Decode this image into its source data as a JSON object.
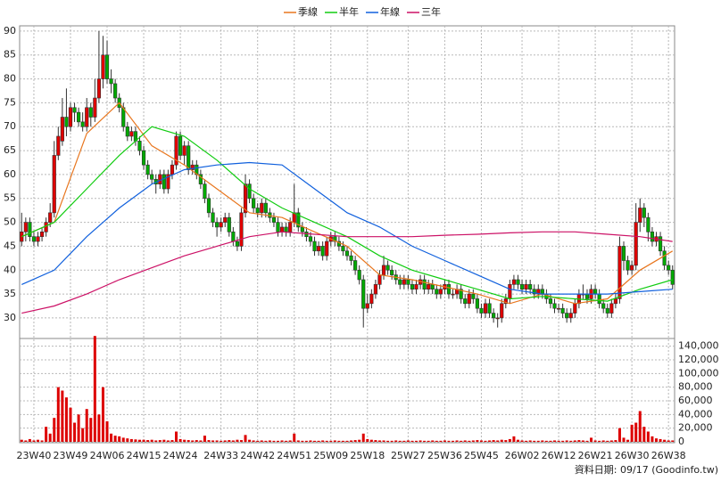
{
  "chart_data": {
    "type": "candlestick",
    "categories": [
      null,
      null,
      null,
      "23W40",
      null,
      null,
      null,
      null,
      null,
      null,
      null,
      null,
      "23W49",
      null,
      null,
      null,
      null,
      null,
      null,
      null,
      null,
      "24W06",
      null,
      null,
      null,
      null,
      null,
      null,
      null,
      null,
      "24W15",
      null,
      null,
      null,
      null,
      null,
      null,
      null,
      null,
      "24W24",
      null,
      null,
      null,
      null,
      null,
      null,
      null,
      null,
      null,
      "24W33",
      null,
      null,
      null,
      null,
      null,
      null,
      null,
      null,
      "24W42",
      null,
      null,
      null,
      null,
      null,
      null,
      null,
      null,
      "24W51",
      null,
      null,
      null,
      null,
      null,
      null,
      null,
      null,
      "25W09",
      null,
      null,
      null,
      null,
      null,
      null,
      null,
      null,
      "25W18",
      null,
      null,
      null,
      null,
      null,
      null,
      null,
      null,
      null,
      "25W27",
      null,
      null,
      null,
      null,
      null,
      null,
      null,
      null,
      "25W36",
      null,
      null,
      null,
      null,
      null,
      null,
      null,
      null,
      "25W45",
      null,
      null,
      null,
      null,
      null,
      null,
      null,
      null,
      null,
      "26W02",
      null,
      null,
      null,
      null,
      null,
      null,
      null,
      null,
      "26W12",
      null,
      null,
      null,
      null,
      null,
      null,
      null,
      null,
      "26W21",
      null,
      null,
      null,
      null,
      null,
      null,
      null,
      null,
      "26W30",
      null,
      null,
      null,
      null,
      null,
      null,
      null,
      null,
      "26W38",
      null
    ],
    "ohlc": [
      [
        46,
        52,
        45,
        48
      ],
      [
        48,
        51,
        46,
        50
      ],
      [
        50,
        51,
        46,
        47
      ],
      [
        47,
        48,
        45,
        46
      ],
      [
        46,
        48,
        45,
        47
      ],
      [
        47,
        49,
        46,
        48
      ],
      [
        48,
        51,
        47,
        50
      ],
      [
        50,
        54,
        49,
        52
      ],
      [
        52,
        67,
        51,
        64
      ],
      [
        64,
        70,
        63,
        68
      ],
      [
        67,
        76,
        66,
        72
      ],
      [
        72,
        78,
        68,
        70
      ],
      [
        70,
        75,
        69,
        74
      ],
      [
        74,
        75,
        71,
        73
      ],
      [
        73,
        74,
        70,
        71
      ],
      [
        71,
        73,
        69,
        70
      ],
      [
        70,
        76,
        69,
        74
      ],
      [
        74,
        75,
        70,
        72
      ],
      [
        72,
        80,
        71,
        76
      ],
      [
        76,
        90,
        75,
        80
      ],
      [
        80,
        89,
        78,
        85
      ],
      [
        85,
        88,
        79,
        80
      ],
      [
        80,
        82,
        77,
        79
      ],
      [
        79,
        80,
        75,
        76
      ],
      [
        76,
        77,
        73,
        74
      ],
      [
        74,
        75,
        69,
        70
      ],
      [
        70,
        71,
        67,
        68
      ],
      [
        68,
        70,
        67,
        69
      ],
      [
        69,
        70,
        66,
        67
      ],
      [
        67,
        68,
        64,
        65
      ],
      [
        65,
        66,
        61,
        62
      ],
      [
        62,
        63,
        59,
        60
      ],
      [
        60,
        61,
        58,
        59
      ],
      [
        59,
        60,
        56,
        58
      ],
      [
        58,
        61,
        57,
        60
      ],
      [
        60,
        61,
        56,
        57
      ],
      [
        57,
        61,
        56,
        60
      ],
      [
        60,
        63,
        59,
        62
      ],
      [
        62,
        69,
        61,
        68
      ],
      [
        68,
        69,
        63,
        64
      ],
      [
        64,
        67,
        62,
        66
      ],
      [
        66,
        67,
        60,
        61
      ],
      [
        61,
        63,
        60,
        62
      ],
      [
        62,
        63,
        59,
        60
      ],
      [
        60,
        61,
        57,
        58
      ],
      [
        58,
        59,
        54,
        55
      ],
      [
        55,
        56,
        51,
        52
      ],
      [
        52,
        53,
        49,
        50
      ],
      [
        50,
        51,
        47,
        49
      ],
      [
        49,
        51,
        48,
        50
      ],
      [
        50,
        52,
        49,
        51
      ],
      [
        51,
        52,
        47,
        48
      ],
      [
        48,
        49,
        45,
        46
      ],
      [
        46,
        47,
        44,
        45
      ],
      [
        45,
        53,
        44,
        52
      ],
      [
        52,
        60,
        51,
        58
      ],
      [
        58,
        59,
        54,
        55
      ],
      [
        55,
        56,
        52,
        53
      ],
      [
        53,
        54,
        51,
        52
      ],
      [
        52,
        55,
        51,
        54
      ],
      [
        54,
        55,
        51,
        52
      ],
      [
        52,
        53,
        50,
        51
      ],
      [
        51,
        52,
        49,
        50
      ],
      [
        50,
        51,
        47,
        48
      ],
      [
        48,
        50,
        47,
        49
      ],
      [
        49,
        50,
        47,
        48
      ],
      [
        48,
        51,
        47,
        50
      ],
      [
        50,
        58,
        49,
        52
      ],
      [
        52,
        53,
        48,
        49
      ],
      [
        49,
        50,
        47,
        48
      ],
      [
        48,
        49,
        46,
        47
      ],
      [
        47,
        48,
        45,
        46
      ],
      [
        46,
        47,
        43,
        44
      ],
      [
        44,
        46,
        43,
        45
      ],
      [
        45,
        46,
        42,
        43
      ],
      [
        43,
        47,
        42,
        46
      ],
      [
        46,
        48,
        45,
        47
      ],
      [
        47,
        48,
        45,
        46
      ],
      [
        46,
        47,
        44,
        45
      ],
      [
        45,
        46,
        43,
        44
      ],
      [
        44,
        45,
        42,
        43
      ],
      [
        43,
        44,
        41,
        42
      ],
      [
        42,
        43,
        39,
        40
      ],
      [
        40,
        41,
        37,
        38
      ],
      [
        38,
        39,
        28,
        32
      ],
      [
        32,
        35,
        31,
        33
      ],
      [
        33,
        36,
        32,
        35
      ],
      [
        35,
        38,
        34,
        37
      ],
      [
        37,
        40,
        36,
        39
      ],
      [
        39,
        43,
        38,
        41
      ],
      [
        41,
        42,
        39,
        40
      ],
      [
        40,
        41,
        38,
        39
      ],
      [
        39,
        40,
        37,
        38
      ],
      [
        38,
        39,
        36,
        37
      ],
      [
        37,
        39,
        36,
        38
      ],
      [
        38,
        39,
        36,
        37
      ],
      [
        37,
        38,
        35,
        36
      ],
      [
        36,
        38,
        35,
        37
      ],
      [
        37,
        39,
        36,
        38
      ],
      [
        38,
        39,
        35,
        36
      ],
      [
        36,
        38,
        35,
        37
      ],
      [
        37,
        38,
        35,
        36
      ],
      [
        36,
        37,
        34,
        35
      ],
      [
        35,
        37,
        34,
        36
      ],
      [
        36,
        38,
        35,
        37
      ],
      [
        37,
        38,
        34,
        35
      ],
      [
        35,
        36,
        34,
        35
      ],
      [
        35,
        37,
        34,
        36
      ],
      [
        36,
        37,
        33,
        34
      ],
      [
        34,
        35,
        32,
        33
      ],
      [
        33,
        36,
        32,
        35
      ],
      [
        35,
        36,
        33,
        34
      ],
      [
        34,
        35,
        31,
        32
      ],
      [
        32,
        33,
        30,
        31
      ],
      [
        31,
        34,
        30,
        33
      ],
      [
        33,
        34,
        30,
        31
      ],
      [
        31,
        32,
        29,
        30
      ],
      [
        30,
        31,
        28,
        30
      ],
      [
        30,
        34,
        29,
        33
      ],
      [
        33,
        35,
        32,
        34
      ],
      [
        34,
        38,
        33,
        37
      ],
      [
        37,
        39,
        36,
        38
      ],
      [
        38,
        39,
        36,
        37
      ],
      [
        37,
        38,
        35,
        36
      ],
      [
        36,
        38,
        35,
        37
      ],
      [
        37,
        38,
        35,
        36
      ],
      [
        36,
        37,
        34,
        35
      ],
      [
        35,
        37,
        34,
        36
      ],
      [
        36,
        37,
        34,
        35
      ],
      [
        35,
        36,
        33,
        34
      ],
      [
        34,
        35,
        32,
        33
      ],
      [
        33,
        34,
        31,
        32
      ],
      [
        32,
        33,
        31,
        32
      ],
      [
        32,
        33,
        30,
        31
      ],
      [
        31,
        32,
        29,
        30
      ],
      [
        30,
        32,
        29,
        31
      ],
      [
        31,
        34,
        30,
        33
      ],
      [
        33,
        36,
        32,
        35
      ],
      [
        35,
        37,
        34,
        35
      ],
      [
        35,
        36,
        33,
        34
      ],
      [
        34,
        37,
        33,
        36
      ],
      [
        36,
        37,
        34,
        35
      ],
      [
        35,
        36,
        32,
        33
      ],
      [
        33,
        34,
        31,
        32
      ],
      [
        32,
        33,
        30,
        31
      ],
      [
        31,
        34,
        30,
        33
      ],
      [
        33,
        35,
        32,
        34
      ],
      [
        34,
        47,
        33,
        45
      ],
      [
        45,
        46,
        40,
        42
      ],
      [
        42,
        43,
        39,
        40
      ],
      [
        40,
        42,
        39,
        41
      ],
      [
        41,
        54,
        40,
        50
      ],
      [
        50,
        55,
        48,
        53
      ],
      [
        53,
        54,
        49,
        51
      ],
      [
        51,
        52,
        46,
        48
      ],
      [
        48,
        49,
        45,
        46
      ],
      [
        46,
        48,
        45,
        47
      ],
      [
        47,
        48,
        43,
        44
      ],
      [
        44,
        45,
        40,
        41
      ],
      [
        41,
        42,
        39,
        40
      ],
      [
        40,
        41,
        36,
        37
      ]
    ],
    "volume": [
      3000,
      2000,
      4000,
      2000,
      3000,
      2000,
      22000,
      12000,
      35000,
      80000,
      75000,
      65000,
      50000,
      28000,
      40000,
      20000,
      48000,
      35000,
      155000,
      40000,
      80000,
      30000,
      12000,
      9000,
      8000,
      6000,
      5000,
      4000,
      3500,
      3000,
      3000,
      2500,
      3000,
      2000,
      2500,
      3000,
      2000,
      2500,
      15000,
      4000,
      3000,
      2500,
      2000,
      2500,
      2000,
      9000,
      2500,
      2000,
      2000,
      1500,
      2000,
      2500,
      2000,
      3000,
      2500,
      10000,
      3000,
      2000,
      1500,
      2000,
      1500,
      2000,
      1500,
      1500,
      2000,
      1500,
      2000,
      12000,
      2000,
      1500,
      1500,
      2000,
      1500,
      1500,
      2000,
      1500,
      1500,
      2000,
      1500,
      1500,
      1500,
      2000,
      2500,
      3000,
      12000,
      4000,
      3000,
      2500,
      2000,
      2000,
      1500,
      1500,
      2000,
      1500,
      1500,
      2000,
      1500,
      1500,
      2000,
      1500,
      1500,
      2000,
      1500,
      1500,
      2000,
      1500,
      1500,
      2000,
      1500,
      2000,
      1500,
      2000,
      2500,
      2000,
      1500,
      2000,
      2500,
      2000,
      3000,
      2500,
      4000,
      8000,
      3000,
      2000,
      1500,
      2000,
      1500,
      1500,
      2000,
      1500,
      1500,
      2000,
      1500,
      1500,
      2000,
      1500,
      2000,
      2500,
      2000,
      1500,
      6000,
      2000,
      1500,
      2000,
      1500,
      2000,
      2500,
      20000,
      6000,
      3000,
      25000,
      28000,
      45000,
      22000,
      15000,
      8000,
      5000,
      4000,
      3000,
      2000,
      2000
    ],
    "up_color": "#e00000",
    "down_color": "#00aa00",
    "volume_color": "#dd0000",
    "series": [
      {
        "name": "季線",
        "color": "#e8761e",
        "x": [
          0,
          8,
          16,
          24,
          32,
          40,
          48,
          56,
          64,
          72,
          80,
          88,
          96,
          104,
          112,
          120,
          128,
          136,
          144,
          152,
          160
        ],
        "values": [
          47,
          50,
          68.6,
          75,
          66,
          62,
          57,
          52,
          51,
          48,
          45,
          39,
          38,
          36.5,
          35,
          33,
          35,
          33,
          34,
          40,
          44
        ]
      },
      {
        "name": "半年",
        "color": "#11cc11",
        "x": [
          0,
          8,
          16,
          24,
          32,
          40,
          48,
          56,
          64,
          72,
          80,
          88,
          96,
          104,
          112,
          120,
          128,
          136,
          144,
          152,
          160
        ],
        "values": [
          47,
          50,
          57,
          64,
          70,
          68,
          63,
          57,
          53,
          50,
          47,
          43,
          40,
          38,
          36,
          34,
          34.5,
          34,
          33.5,
          36,
          38
        ]
      },
      {
        "name": "年線",
        "color": "#1060dd",
        "x": [
          0,
          8,
          16,
          24,
          32,
          40,
          48,
          56,
          64,
          72,
          80,
          88,
          96,
          104,
          112,
          120,
          128,
          136,
          144,
          152,
          160
        ],
        "values": [
          37,
          40,
          47,
          53,
          58,
          61,
          62,
          62.5,
          62,
          57,
          52,
          49,
          45,
          42,
          39,
          36,
          35,
          35,
          35,
          35.5,
          36
        ]
      },
      {
        "name": "三年",
        "color": "#cc1166",
        "x": [
          0,
          8,
          16,
          24,
          32,
          40,
          48,
          56,
          64,
          72,
          80,
          88,
          96,
          104,
          112,
          120,
          128,
          136,
          144,
          152,
          160
        ],
        "values": [
          31,
          32.5,
          35,
          38,
          40.5,
          43,
          45,
          47,
          48,
          47.5,
          47,
          47,
          47,
          47.3,
          47.5,
          47.8,
          48,
          48,
          47.5,
          47,
          46
        ]
      }
    ],
    "ylim": [
      25.7,
      91.1
    ],
    "yticks": [
      30,
      35,
      40,
      45,
      50,
      55,
      60,
      65,
      70,
      75,
      80,
      85,
      90
    ],
    "y2lim": [
      0,
      150000
    ],
    "y2ticks": [
      0,
      {
        "value": 20000,
        "label": "20,000"
      },
      {
        "value": 40000,
        "label": "40,000"
      },
      {
        "value": 60000,
        "label": "60,000"
      },
      {
        "value": 80000,
        "label": "80,000"
      },
      {
        "value": 100000,
        "label": "100,000"
      },
      {
        "value": 120000,
        "label": "120,000"
      },
      {
        "value": 140000,
        "label": "140,000"
      }
    ],
    "grid": true,
    "footnote": "資料日期: 09/17 (Goodinfo.tw)"
  }
}
